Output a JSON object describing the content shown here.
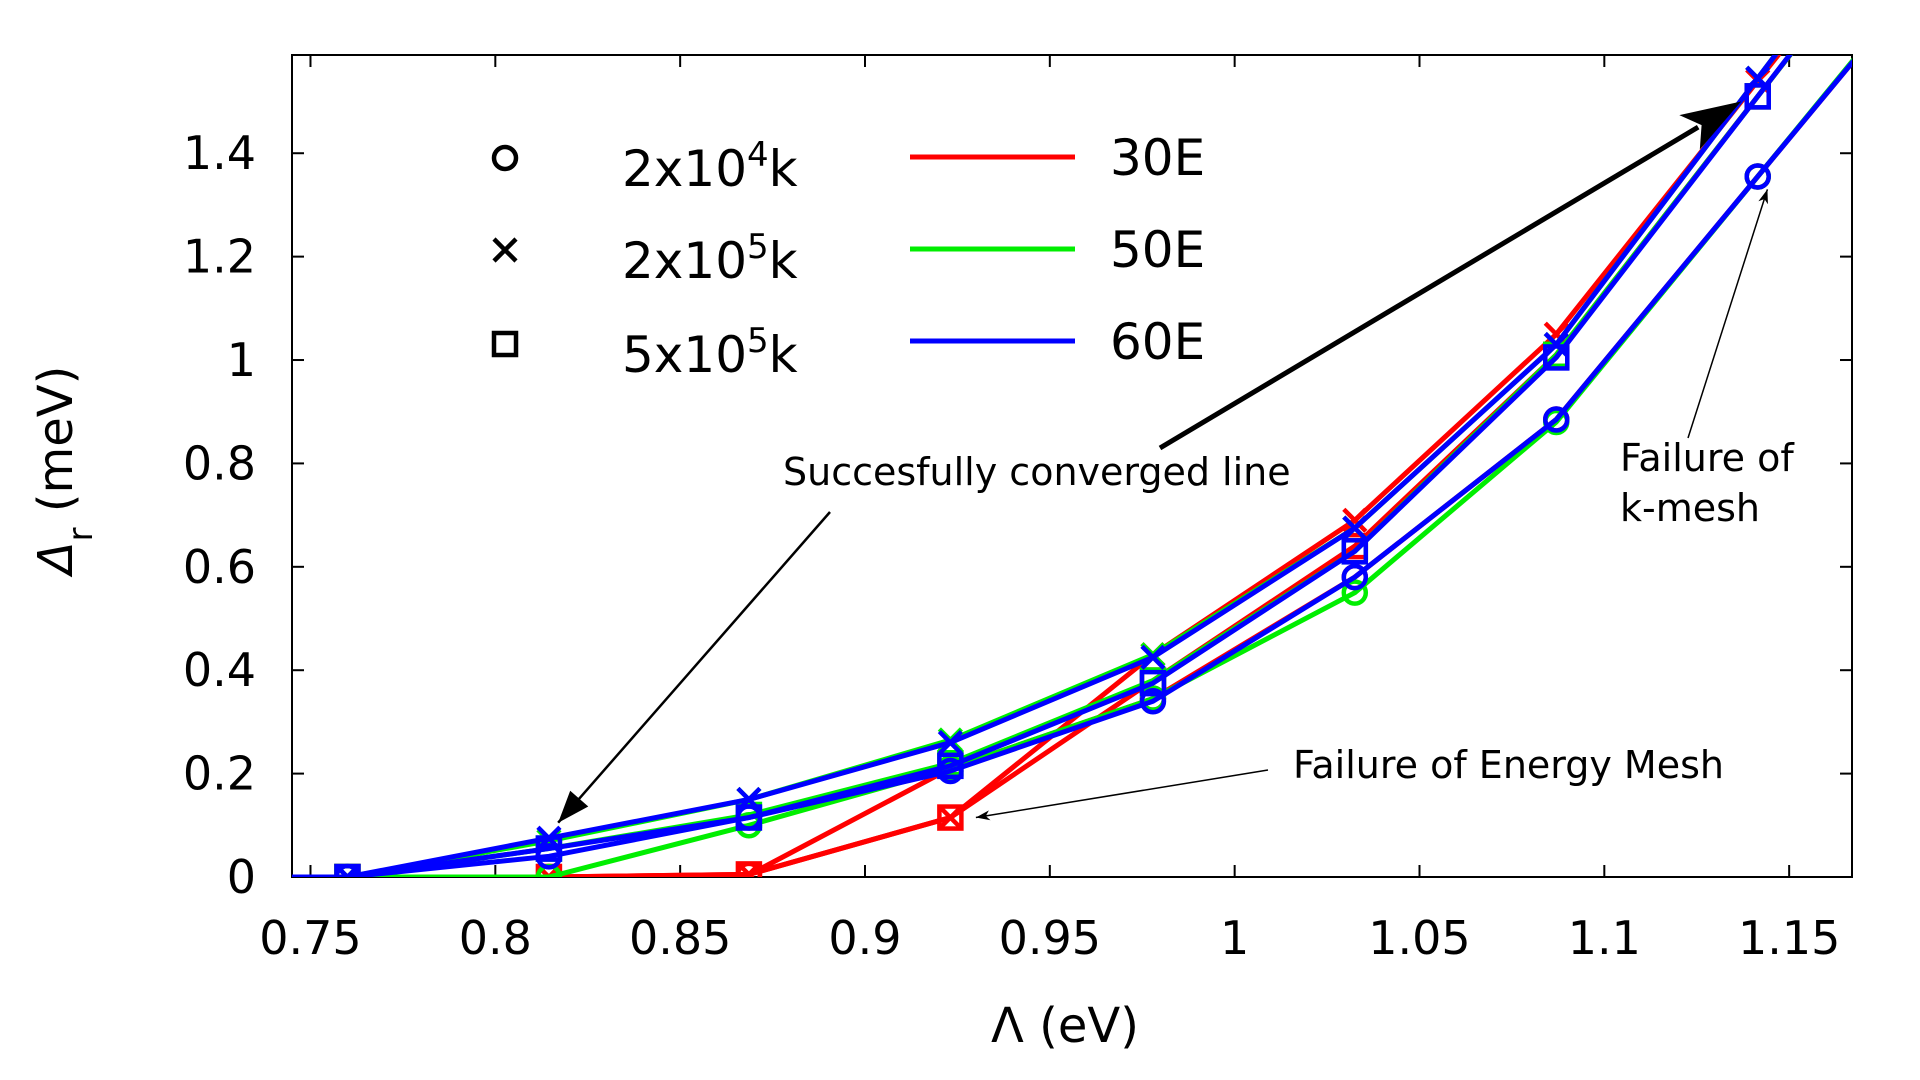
{
  "chart_data": {
    "type": "line",
    "title": "",
    "xlabel": "Λ (eV)",
    "ylabel_main": "Δ",
    "ylabel_sub": "r",
    "ylabel_unit": " (meV)",
    "xlim": [
      0.745,
      1.167
    ],
    "ylim": [
      0,
      1.59
    ],
    "xticks": [
      0.75,
      0.8,
      0.85,
      0.9,
      0.95,
      1.0,
      1.05,
      1.1,
      1.15
    ],
    "xtick_labels": [
      "0.75",
      "0.8",
      "0.85",
      "0.9",
      "0.95",
      "1",
      "1.05",
      "1.1",
      "1.15"
    ],
    "yticks": [
      0,
      0.2,
      0.4,
      0.6,
      0.8,
      1.0,
      1.2,
      1.4
    ],
    "ytick_labels": [
      "0",
      "0.2",
      "0.4",
      "0.6",
      "0.8",
      "1",
      "1.2",
      "1.4"
    ],
    "colors": {
      "30E": "#ff0000",
      "50E": "#00ee00",
      "60E": "#0000ff"
    },
    "legend": {
      "markers": [
        {
          "symbol": "circle",
          "base": "2x10",
          "exp": "4",
          "suffix": "k"
        },
        {
          "symbol": "cross",
          "base": "2x10",
          "exp": "5",
          "suffix": "k"
        },
        {
          "symbol": "square",
          "base": "5x10",
          "exp": "5",
          "suffix": "k"
        }
      ],
      "lines": [
        {
          "label": "30E",
          "color": "#ff0000"
        },
        {
          "label": "50E",
          "color": "#00ee00"
        },
        {
          "label": "60E",
          "color": "#0000ff"
        }
      ]
    },
    "series": [
      {
        "name": "30E 2x10^4k",
        "color": "#ff0000",
        "marker": "circle",
        "x": [
          0.76,
          0.8145,
          0.8686,
          0.9231,
          0.9779,
          1.0325,
          1.087,
          1.1415
        ],
        "y": [
          0.0,
          0.0,
          0.004,
          0.21,
          0.345,
          0.58,
          0.885,
          1.355
        ]
      },
      {
        "name": "50E 2x10^4k",
        "color": "#00ee00",
        "marker": "circle",
        "x": [
          0.76,
          0.8145,
          0.8686,
          0.9231,
          0.9779,
          1.0325,
          1.087,
          1.1415
        ],
        "y": [
          0.0,
          0.0,
          0.1,
          0.21,
          0.345,
          0.55,
          0.88,
          1.355
        ]
      },
      {
        "name": "60E 2x10^4k",
        "color": "#0000ff",
        "marker": "circle",
        "x": [
          0.76,
          0.8145,
          0.8686,
          0.9231,
          0.9779,
          1.0325,
          1.087,
          1.1415
        ],
        "y": [
          0.0,
          0.04,
          0.115,
          0.205,
          0.34,
          0.58,
          0.885,
          1.355
        ]
      },
      {
        "name": "30E 2x10^5k",
        "color": "#ff0000",
        "marker": "cross",
        "x": [
          0.76,
          0.8145,
          0.8686,
          0.9231,
          0.9779,
          1.0325,
          1.087,
          1.1415
        ],
        "y": [
          0.0,
          0.0,
          0.005,
          0.115,
          0.43,
          0.69,
          1.05,
          1.54
        ]
      },
      {
        "name": "50E 2x10^5k",
        "color": "#00ee00",
        "marker": "cross",
        "x": [
          0.76,
          0.8145,
          0.8686,
          0.9231,
          0.9779,
          1.0325,
          1.087,
          1.1415
        ],
        "y": [
          0.0,
          0.07,
          0.15,
          0.265,
          0.43,
          0.675,
          1.03,
          1.545
        ]
      },
      {
        "name": "60E 2x10^5k",
        "color": "#0000ff",
        "marker": "cross",
        "x": [
          0.76,
          0.8145,
          0.8686,
          0.9231,
          0.9779,
          1.0325,
          1.087,
          1.1415
        ],
        "y": [
          0.0,
          0.075,
          0.15,
          0.26,
          0.425,
          0.675,
          1.03,
          1.545
        ]
      },
      {
        "name": "30E 5x10^5k",
        "color": "#ff0000",
        "marker": "square",
        "x": [
          0.76,
          0.8145,
          0.8686,
          0.9231,
          0.9779,
          1.0325,
          1.087,
          1.1415
        ],
        "y": [
          0.0,
          0.0,
          0.005,
          0.115,
          0.38,
          0.64,
          1.01,
          1.51
        ]
      },
      {
        "name": "50E 5x10^5k",
        "color": "#00ee00",
        "marker": "square",
        "x": [
          0.76,
          0.8145,
          0.8686,
          0.9231,
          0.9779,
          1.0325,
          1.087,
          1.1415
        ],
        "y": [
          0.0,
          0.055,
          0.12,
          0.22,
          0.38,
          0.63,
          1.01,
          1.51
        ]
      },
      {
        "name": "60E 5x10^5k",
        "color": "#0000ff",
        "marker": "square",
        "x": [
          0.76,
          0.8145,
          0.8686,
          0.9231,
          0.9779,
          1.0325,
          1.087,
          1.1415
        ],
        "y": [
          0.0,
          0.055,
          0.115,
          0.215,
          0.375,
          0.63,
          1.005,
          1.51
        ]
      }
    ],
    "annotations": [
      {
        "text_lines": [
          "Succesfully converged line"
        ],
        "arrow_targets": [
          [
            0.817,
            0.105
          ],
          [
            1.137,
            1.5
          ]
        ],
        "arrow_head": "filled"
      },
      {
        "text_lines": [
          "Failure of Energy Mesh"
        ],
        "arrow_targets": [
          [
            0.93,
            0.115
          ]
        ],
        "arrow_head": "thin"
      },
      {
        "text_lines": [
          "Failure of",
          "k-mesh"
        ],
        "arrow_targets": [
          [
            1.1425,
            1.33
          ]
        ],
        "arrow_head": "thin"
      }
    ]
  }
}
